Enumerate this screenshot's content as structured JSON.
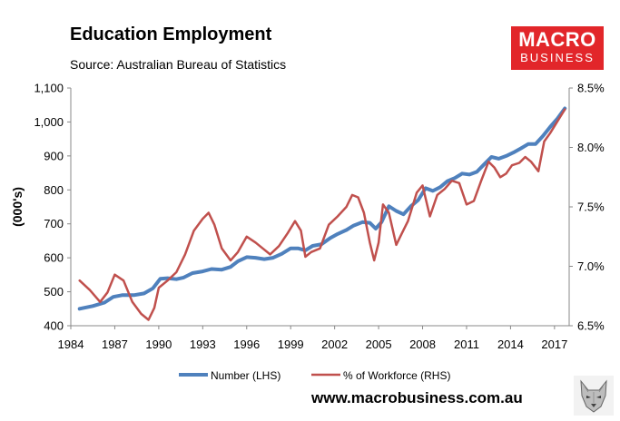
{
  "header": {
    "title": "Education Employment",
    "subtitle": "Source: Australian Bureau of Statistics"
  },
  "logo": {
    "line1": "MACRO",
    "line2": "BUSINESS"
  },
  "footer": {
    "website": "www.macrobusiness.com.au"
  },
  "colors": {
    "number": "#4f81bd",
    "percent": "#c0504d",
    "logo_bg": "#e2262a"
  },
  "chart_data": {
    "type": "line",
    "title": "Education Employment",
    "ylabel": "(000's)",
    "ylim": [
      400,
      1100
    ],
    "y2lim": [
      6.5,
      8.5
    ],
    "xlim": [
      1984,
      2018
    ],
    "x_ticks": [
      "1984",
      "1987",
      "1990",
      "1993",
      "1996",
      "1999",
      "2002",
      "2005",
      "2008",
      "2011",
      "2014",
      "2017"
    ],
    "y_ticks": [
      "400",
      "500",
      "600",
      "700",
      "800",
      "900",
      "1,000",
      "1,100"
    ],
    "y2_ticks": [
      "6.5%",
      "7.0%",
      "7.5%",
      "8.0%",
      "8.5%"
    ],
    "grid": false,
    "legend": "bottom",
    "series": [
      {
        "name": "Number (LHS)",
        "axis": "left",
        "x": [
          1984.6,
          1985.5,
          1986.3,
          1986.9,
          1987.5,
          1988.3,
          1989.0,
          1989.6,
          1990.1,
          1990.6,
          1991.2,
          1991.7,
          1992.3,
          1993.0,
          1993.6,
          1994.3,
          1994.9,
          1995.4,
          1996.0,
          1996.6,
          1997.2,
          1997.8,
          1998.4,
          1999.0,
          1999.5,
          2000.0,
          2000.5,
          2001.1,
          2001.7,
          2002.2,
          2002.8,
          2003.3,
          2003.9,
          2004.4,
          2004.8,
          2005.2,
          2005.7,
          2006.2,
          2006.7,
          2007.2,
          2007.7,
          2008.2,
          2008.7,
          2009.2,
          2009.7,
          2010.2,
          2010.7,
          2011.2,
          2011.7,
          2012.2,
          2012.7,
          2013.2,
          2013.7,
          2014.2,
          2014.7,
          2015.2,
          2015.7,
          2016.2,
          2016.7,
          2017.2,
          2017.7
        ],
        "values": [
          450,
          458,
          468,
          485,
          490,
          490,
          495,
          510,
          538,
          540,
          537,
          542,
          555,
          560,
          567,
          565,
          573,
          590,
          602,
          600,
          596,
          600,
          612,
          628,
          628,
          622,
          635,
          640,
          658,
          670,
          682,
          695,
          705,
          703,
          686,
          705,
          752,
          738,
          728,
          752,
          770,
          805,
          797,
          808,
          826,
          835,
          848,
          845,
          853,
          875,
          897,
          892,
          900,
          910,
          922,
          935,
          935,
          958,
          985,
          1010,
          1040
        ]
      },
      {
        "name": "% of Workforce (RHS)",
        "axis": "right",
        "x": [
          1984.6,
          1985.3,
          1986.0,
          1986.5,
          1987.0,
          1987.6,
          1988.2,
          1988.8,
          1989.3,
          1989.7,
          1990.0,
          1990.6,
          1991.2,
          1991.8,
          1992.4,
          1993.0,
          1993.4,
          1993.8,
          1994.3,
          1994.9,
          1995.4,
          1996.0,
          1996.6,
          1997.1,
          1997.6,
          1998.2,
          1998.8,
          1999.3,
          1999.7,
          2000.0,
          2000.4,
          2001.0,
          2001.6,
          2002.2,
          2002.8,
          2003.2,
          2003.6,
          2004.0,
          2004.4,
          2004.7,
          2005.0,
          2005.3,
          2005.7,
          2006.2,
          2006.6,
          2007.0,
          2007.6,
          2008.0,
          2008.5,
          2009.0,
          2009.5,
          2010.0,
          2010.5,
          2011.0,
          2011.5,
          2012.0,
          2012.5,
          2012.9,
          2013.3,
          2013.7,
          2014.1,
          2014.6,
          2015.0,
          2015.4,
          2015.9,
          2016.3,
          2016.7,
          2017.2,
          2017.7
        ],
        "values": [
          6.88,
          6.8,
          6.7,
          6.78,
          6.93,
          6.88,
          6.7,
          6.6,
          6.55,
          6.65,
          6.82,
          6.88,
          6.95,
          7.1,
          7.3,
          7.4,
          7.45,
          7.35,
          7.15,
          7.05,
          7.12,
          7.25,
          7.2,
          7.15,
          7.1,
          7.17,
          7.28,
          7.38,
          7.3,
          7.08,
          7.12,
          7.15,
          7.35,
          7.42,
          7.5,
          7.6,
          7.58,
          7.45,
          7.2,
          7.05,
          7.2,
          7.52,
          7.45,
          7.18,
          7.28,
          7.38,
          7.62,
          7.68,
          7.42,
          7.6,
          7.65,
          7.72,
          7.7,
          7.52,
          7.55,
          7.72,
          7.88,
          7.83,
          7.75,
          7.78,
          7.85,
          7.87,
          7.92,
          7.88,
          7.8,
          8.05,
          8.12,
          8.22,
          8.32
        ]
      }
    ]
  }
}
